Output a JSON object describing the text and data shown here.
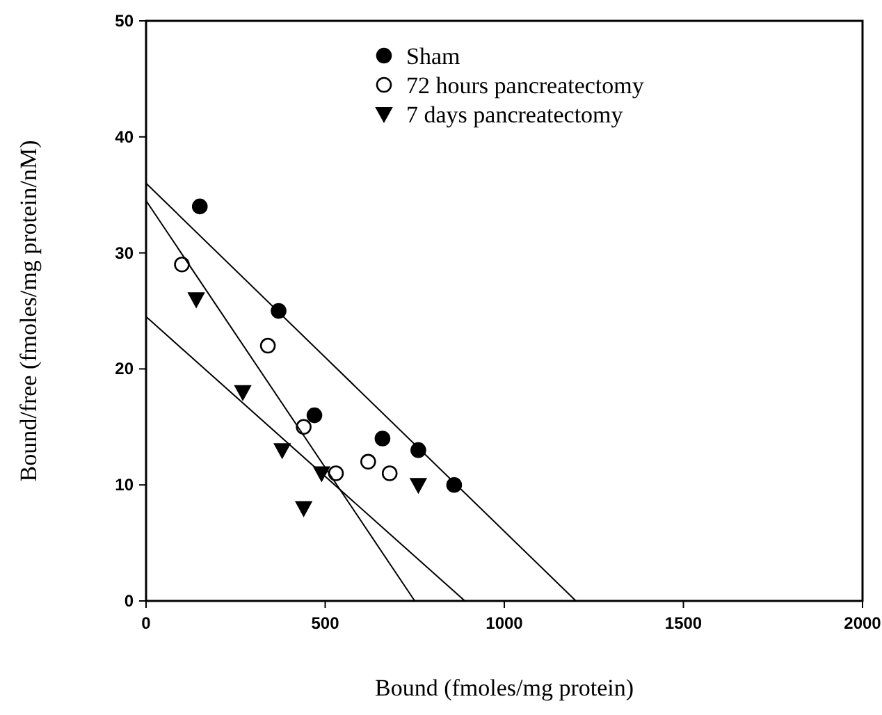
{
  "chart_data": {
    "type": "scatter",
    "xlabel": "Bound (fmoles/mg protein)",
    "ylabel": "Bound/free (fmoles/mg protein/nM)",
    "xlim": [
      0,
      2000
    ],
    "xticks": [
      0,
      500,
      1000,
      1500,
      2000
    ],
    "ylim": [
      0,
      50
    ],
    "yticks": [
      0,
      10,
      20,
      30,
      40,
      50
    ],
    "grid": false,
    "legend": "top",
    "series": [
      {
        "name": "Sham",
        "color": "#000000",
        "marker": "circle",
        "x": [
          150,
          370,
          470,
          660,
          760,
          860
        ],
        "values": [
          34,
          25,
          16,
          14,
          13,
          10
        ]
      },
      {
        "name": "72 hours pancreatectomy",
        "color": "#ffffff",
        "marker": "circle",
        "x": [
          100,
          340,
          440,
          530,
          620,
          680
        ],
        "values": [
          29,
          22,
          15,
          11,
          12,
          11
        ]
      },
      {
        "name": "7 days pancreatectomy",
        "color": "#000000",
        "marker": "triangle",
        "x": [
          140,
          270,
          380,
          490,
          440,
          760
        ],
        "values": [
          26,
          18,
          13,
          11,
          8,
          10
        ]
      },
      {
        "type": "line",
        "color": "#000000",
        "marker": "none",
        "x": [
          0,
          1200
        ],
        "values": [
          36,
          0
        ]
      },
      {
        "type": "line",
        "color": "#000000",
        "marker": "none",
        "x": [
          0,
          750
        ],
        "values": [
          34.5,
          0
        ]
      },
      {
        "type": "line",
        "color": "#000000",
        "marker": "none",
        "x": [
          0,
          890
        ],
        "values": [
          24.5,
          0
        ]
      }
    ]
  }
}
